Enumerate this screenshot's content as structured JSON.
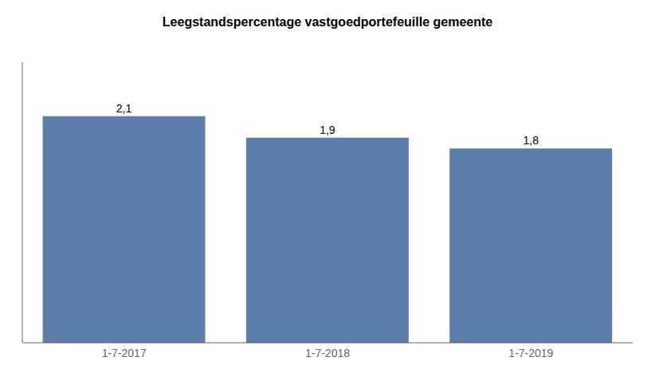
{
  "chart_data": {
    "type": "bar",
    "title": "Leegstandspercentage vastgoedportefeuille gemeente",
    "categories": [
      "1-7-2017",
      "1-7-2018",
      "1-7-2019"
    ],
    "values": [
      2.1,
      1.9,
      1.8
    ],
    "value_labels": [
      "2,1",
      "1,9",
      "1,8"
    ],
    "color": "#5b7faa",
    "ylim": [
      0,
      2.6
    ],
    "data_labels": true,
    "tick_labels": "x",
    "grid": false
  }
}
